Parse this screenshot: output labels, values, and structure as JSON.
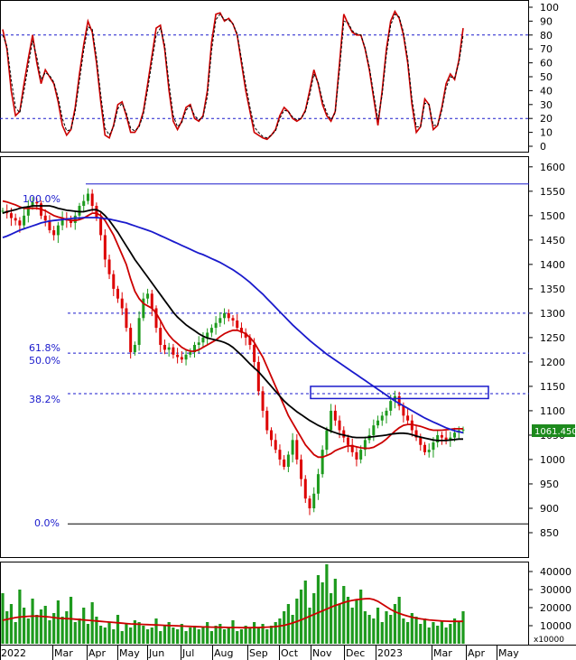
{
  "chart_data": [
    {
      "panel": "stochastic-oscillator",
      "type": "line",
      "ylim": [
        0,
        100
      ],
      "y_ticks": [
        100,
        90,
        80,
        70,
        60,
        50,
        40,
        30,
        20,
        10,
        0
      ],
      "overbought": 80,
      "oversold": 20,
      "series": [
        {
          "color": "#cc0000",
          "values": [
            84,
            70,
            40,
            22,
            25,
            45,
            63,
            80,
            60,
            45,
            55,
            50,
            45,
            32,
            15,
            8,
            12,
            28,
            52,
            73,
            90,
            82,
            60,
            32,
            8,
            6,
            15,
            30,
            32,
            22,
            10,
            10,
            15,
            25,
            45,
            65,
            85,
            87,
            70,
            40,
            18,
            12,
            18,
            28,
            30,
            20,
            18,
            22,
            40,
            75,
            95,
            96,
            90,
            92,
            88,
            80,
            60,
            40,
            25,
            10,
            8,
            6,
            5,
            8,
            12,
            22,
            28,
            25,
            20,
            18,
            20,
            26,
            40,
            55,
            45,
            30,
            22,
            18,
            25,
            60,
            95,
            88,
            82,
            80,
            80,
            70,
            55,
            35,
            15,
            40,
            70,
            90,
            97,
            92,
            80,
            60,
            30,
            10,
            14,
            34,
            30,
            12,
            15,
            28,
            45,
            52,
            48,
            62,
            85
          ]
        },
        {
          "color": "#000000",
          "dashed": true,
          "values": [
            80,
            72,
            48,
            28,
            24,
            40,
            58,
            76,
            64,
            48,
            53,
            51,
            46,
            35,
            20,
            11,
            12,
            25,
            47,
            69,
            86,
            84,
            64,
            37,
            13,
            8,
            14,
            27,
            31,
            24,
            13,
            11,
            14,
            23,
            41,
            61,
            80,
            85,
            73,
            45,
            22,
            14,
            17,
            26,
            29,
            22,
            19,
            21,
            36,
            69,
            91,
            95,
            91,
            91,
            88,
            81,
            63,
            44,
            28,
            14,
            10,
            7,
            6,
            8,
            11,
            20,
            26,
            25,
            21,
            19,
            20,
            25,
            37,
            52,
            46,
            33,
            24,
            19,
            24,
            55,
            90,
            89,
            83,
            81,
            80,
            71,
            57,
            38,
            19,
            37,
            66,
            87,
            95,
            93,
            82,
            63,
            34,
            14,
            14,
            31,
            30,
            15,
            15,
            26,
            42,
            50,
            49,
            60,
            80
          ]
        }
      ]
    },
    {
      "panel": "price",
      "type": "candlestick",
      "ylim": [
        800,
        1620
      ],
      "y_ticks": [
        1600,
        1550,
        1500,
        1450,
        1400,
        1350,
        1300,
        1250,
        1200,
        1150,
        1100,
        1050,
        1000,
        950,
        900,
        850
      ],
      "last_price_label": "1061.450",
      "close": [
        1510,
        1505,
        1495,
        1490,
        1480,
        1500,
        1520,
        1528,
        1525,
        1500,
        1490,
        1470,
        1460,
        1480,
        1495,
        1490,
        1485,
        1500,
        1520,
        1530,
        1545,
        1520,
        1495,
        1460,
        1410,
        1380,
        1350,
        1330,
        1310,
        1270,
        1220,
        1235,
        1290,
        1330,
        1340,
        1310,
        1270,
        1235,
        1225,
        1230,
        1215,
        1210,
        1205,
        1215,
        1220,
        1235,
        1240,
        1250,
        1260,
        1270,
        1280,
        1290,
        1300,
        1290,
        1285,
        1270,
        1260,
        1250,
        1235,
        1200,
        1140,
        1100,
        1060,
        1040,
        1020,
        1000,
        985,
        1010,
        1040,
        1000,
        960,
        920,
        900,
        930,
        970,
        1020,
        1060,
        1100,
        1080,
        1060,
        1045,
        1030,
        1015,
        1000,
        1020,
        1040,
        1050,
        1070,
        1080,
        1090,
        1100,
        1120,
        1130,
        1110,
        1090,
        1080,
        1060,
        1045,
        1030,
        1015,
        1020,
        1035,
        1050,
        1045,
        1040,
        1045,
        1055,
        1060,
        1061.45
      ],
      "rsd_levels": [
        {
          "label": "100.0%",
          "value": 1565
        },
        {
          "label": "61.8%",
          "value": 1300
        },
        {
          "label": "50.0%",
          "value": 1218
        },
        {
          "label": "38.2%",
          "value": 1135
        },
        {
          "label": "0.0%",
          "value": 868
        }
      ],
      "ma_series": [
        {
          "color": "#cc0000",
          "values": [
            1530,
            1528,
            1525,
            1522,
            1518,
            1515,
            1515,
            1515,
            1515,
            1513,
            1510,
            1505,
            1500,
            1497,
            1495,
            1492,
            1490,
            1490,
            1492,
            1495,
            1500,
            1505,
            1505,
            1500,
            1490,
            1475,
            1460,
            1440,
            1420,
            1400,
            1370,
            1345,
            1330,
            1320,
            1315,
            1310,
            1300,
            1285,
            1268,
            1255,
            1245,
            1238,
            1230,
            1225,
            1222,
            1222,
            1225,
            1230,
            1235,
            1240,
            1245,
            1252,
            1258,
            1262,
            1265,
            1265,
            1262,
            1258,
            1250,
            1240,
            1225,
            1210,
            1190,
            1170,
            1150,
            1130,
            1110,
            1090,
            1075,
            1060,
            1045,
            1030,
            1020,
            1010,
            1005,
            1005,
            1008,
            1012,
            1018,
            1022,
            1025,
            1028,
            1028,
            1026,
            1024,
            1023,
            1023,
            1025,
            1030,
            1035,
            1042,
            1050,
            1058,
            1065,
            1070,
            1072,
            1072,
            1070,
            1068,
            1065,
            1062,
            1060,
            1060,
            1060,
            1061,
            1062,
            1063,
            1063,
            1063
          ]
        },
        {
          "color": "#000000",
          "values": [
            1505,
            1508,
            1510,
            1512,
            1515,
            1517,
            1518,
            1520,
            1520,
            1520,
            1520,
            1520,
            1518,
            1515,
            1513,
            1511,
            1510,
            1509,
            1508,
            1508,
            1510,
            1512,
            1512,
            1508,
            1500,
            1490,
            1478,
            1466,
            1452,
            1438,
            1424,
            1410,
            1398,
            1386,
            1374,
            1362,
            1350,
            1338,
            1326,
            1314,
            1302,
            1292,
            1284,
            1276,
            1270,
            1264,
            1258,
            1253,
            1249,
            1247,
            1245,
            1243,
            1240,
            1236,
            1230,
            1222,
            1214,
            1205,
            1196,
            1188,
            1180,
            1170,
            1160,
            1150,
            1140,
            1130,
            1120,
            1112,
            1105,
            1098,
            1092,
            1086,
            1080,
            1075,
            1070,
            1066,
            1062,
            1058,
            1055,
            1052,
            1050,
            1048,
            1046,
            1045,
            1045,
            1045,
            1046,
            1047,
            1048,
            1049,
            1050,
            1052,
            1053,
            1054,
            1054,
            1053,
            1051,
            1048,
            1046,
            1044,
            1042,
            1040,
            1039,
            1039,
            1039,
            1040,
            1041,
            1042,
            1042
          ]
        },
        {
          "color": "#1a1acc",
          "values": [
            1455,
            1458,
            1462,
            1466,
            1470,
            1473,
            1476,
            1479,
            1482,
            1485,
            1487,
            1489,
            1490,
            1491,
            1492,
            1493,
            1494,
            1495,
            1495,
            1496,
            1496,
            1496,
            1496,
            1495,
            1494,
            1493,
            1491,
            1489,
            1487,
            1485,
            1482,
            1479,
            1476,
            1473,
            1470,
            1467,
            1463,
            1459,
            1455,
            1451,
            1447,
            1443,
            1439,
            1435,
            1431,
            1427,
            1423,
            1420,
            1416,
            1412,
            1408,
            1404,
            1399,
            1394,
            1389,
            1383,
            1377,
            1370,
            1363,
            1355,
            1347,
            1339,
            1330,
            1321,
            1312,
            1303,
            1294,
            1285,
            1276,
            1268,
            1260,
            1252,
            1244,
            1237,
            1230,
            1223,
            1216,
            1210,
            1204,
            1198,
            1192,
            1186,
            1180,
            1174,
            1168,
            1162,
            1156,
            1150,
            1144,
            1138,
            1132,
            1126,
            1120,
            1115,
            1110,
            1105,
            1100,
            1095,
            1090,
            1085,
            1081,
            1077,
            1073,
            1069,
            1065,
            1062,
            1059,
            1057,
            1055
          ]
        }
      ],
      "annotations": [
        {
          "type": "rectangle",
          "x_range": [
            "Oct",
            "Mar"
          ],
          "y_range": [
            1125,
            1150
          ],
          "color": "#1a1acc"
        }
      ]
    },
    {
      "panel": "volume",
      "type": "bar",
      "ylim": [
        0,
        45000
      ],
      "y_ticks": [
        40000,
        30000,
        20000,
        10000
      ],
      "unit_label": "x10000",
      "values": [
        28000,
        18000,
        22000,
        12000,
        30000,
        20000,
        14000,
        25000,
        16000,
        19000,
        21000,
        13000,
        17000,
        24000,
        15000,
        18000,
        26000,
        12000,
        14000,
        20000,
        11000,
        23000,
        15000,
        10000,
        9000,
        12000,
        8000,
        16000,
        7000,
        11000,
        9000,
        13000,
        12000,
        10000,
        8000,
        9000,
        14000,
        7000,
        10000,
        12000,
        9000,
        8000,
        11000,
        7000,
        9000,
        10000,
        8000,
        9000,
        12000,
        7000,
        10000,
        11000,
        8000,
        9000,
        13000,
        7000,
        8000,
        10000,
        9000,
        12000,
        9000,
        11000,
        8000,
        10000,
        12000,
        14000,
        18000,
        22000,
        16000,
        25000,
        30000,
        35000,
        20000,
        28000,
        38000,
        34000,
        44000,
        28000,
        36000,
        22000,
        32000,
        26000,
        20000,
        24000,
        30000,
        18000,
        16000,
        14000,
        20000,
        12000,
        18000,
        16000,
        22000,
        26000,
        14000,
        12000,
        17000,
        15000,
        11000,
        14000,
        9000,
        12000,
        10000,
        13000,
        9000,
        11000,
        14000,
        12000,
        18000
      ],
      "ma_values": [
        13000,
        13500,
        14000,
        14500,
        14800,
        15000,
        15200,
        15300,
        15300,
        15200,
        15000,
        14800,
        14500,
        14200,
        14000,
        13900,
        13800,
        13600,
        13400,
        13200,
        13000,
        12800,
        12600,
        12400,
        12200,
        12000,
        11800,
        11600,
        11400,
        11200,
        11000,
        10900,
        10800,
        10700,
        10600,
        10500,
        10400,
        10300,
        10200,
        10100,
        10000,
        9900,
        9800,
        9700,
        9600,
        9500,
        9400,
        9300,
        9300,
        9200,
        9200,
        9100,
        9100,
        9000,
        9000,
        9000,
        8900,
        8900,
        8900,
        9000,
        9000,
        9100,
        9200,
        9300,
        9500,
        9800,
        10200,
        10800,
        11500,
        12300,
        13200,
        14200,
        15200,
        16200,
        17200,
        18200,
        19200,
        20200,
        21200,
        22000,
        22800,
        23500,
        24000,
        24400,
        24700,
        24900,
        25000,
        24500,
        23500,
        22000,
        20500,
        19000,
        17800,
        16800,
        16000,
        15300,
        14700,
        14200,
        13800,
        13500,
        13200,
        13000,
        12800,
        12600,
        12500,
        12400,
        12400,
        12400,
        12400
      ]
    }
  ],
  "x_axis": {
    "labels": [
      "2022",
      "Mar",
      "Apr",
      "May",
      "Jun",
      "Jul",
      "Aug",
      "Sep",
      "Oct",
      "Nov",
      "Dec",
      "2023",
      "Mar",
      "Apr",
      "May"
    ]
  }
}
